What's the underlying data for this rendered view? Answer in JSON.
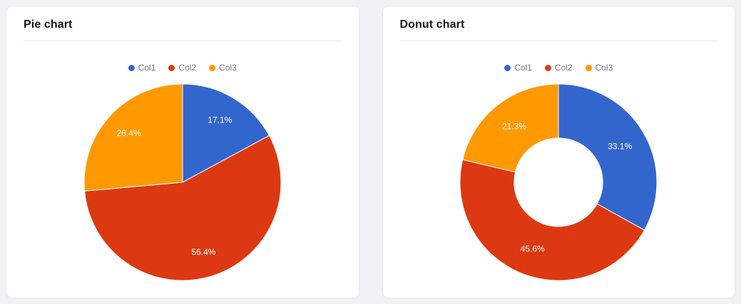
{
  "page": {
    "background": "#f1f2f6"
  },
  "cards": [
    {
      "title": "Pie chart"
    },
    {
      "title": "Donut chart"
    }
  ],
  "chart_data": [
    {
      "type": "pie",
      "title": "Pie chart",
      "categories": [
        "Col1",
        "Col2",
        "Col3"
      ],
      "values": [
        17.1,
        56.4,
        26.4
      ],
      "labels": [
        "17.1%",
        "56.4%",
        "26.4%"
      ],
      "colors": [
        "#3366CC",
        "#DC3912",
        "#FF9900"
      ],
      "inner_radius_ratio": 0,
      "start_angle": 0,
      "direction": "clockwise",
      "legend_position": "top"
    },
    {
      "type": "pie",
      "subtype": "donut",
      "title": "Donut chart",
      "categories": [
        "Col1",
        "Col2",
        "Col3"
      ],
      "values": [
        33.1,
        45.6,
        21.3
      ],
      "labels": [
        "33.1%",
        "45.6%",
        "21.3%"
      ],
      "colors": [
        "#3366CC",
        "#DC3912",
        "#FF9900"
      ],
      "inner_radius_ratio": 0.45,
      "start_angle": 0,
      "direction": "clockwise",
      "legend_position": "top"
    }
  ]
}
